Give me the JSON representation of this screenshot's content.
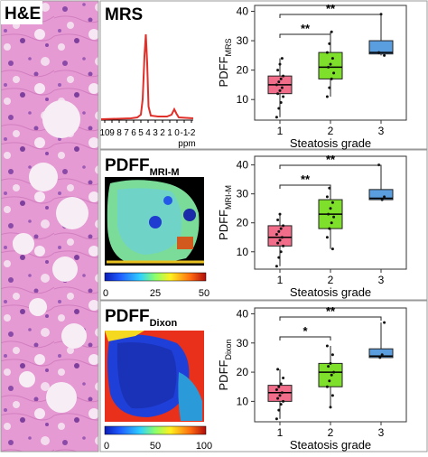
{
  "he_panel": {
    "label": "H&E"
  },
  "panels": [
    {
      "id": "mrs",
      "title_main": "MRS",
      "title_sub": "",
      "spectrum_ticks": [
        "10",
        "9",
        "8",
        "7",
        "6",
        "5",
        "4",
        "3",
        "2",
        "1",
        "0",
        "-1",
        "-2"
      ],
      "spectrum_unit": "ppm"
    },
    {
      "id": "mri-m",
      "title_main": "PDFF",
      "title_sub": "MRI-M",
      "colorbar_ticks": [
        "0",
        "25",
        "50"
      ]
    },
    {
      "id": "dixon",
      "title_main": "PDFF",
      "title_sub": "Dixon",
      "colorbar_ticks": [
        "0",
        "50",
        "100"
      ]
    }
  ],
  "chart_data": [
    {
      "type": "box",
      "ylabel_main": "PDFF",
      "ylabel_sub": "MRS",
      "xlabel": "Steatosis grade",
      "categories": [
        "1",
        "2",
        "3"
      ],
      "yticks": [
        10,
        20,
        30,
        40
      ],
      "ylim": [
        3,
        42
      ],
      "boxes": [
        {
          "q1": 12,
          "median": 15,
          "q3": 18,
          "min": 4,
          "max": 24,
          "color": "#f26d8a"
        },
        {
          "q1": 17,
          "median": 21,
          "q3": 26,
          "min": 11,
          "max": 33,
          "color": "#7ee02a"
        },
        {
          "q1": 25.5,
          "median": 26,
          "q3": 30,
          "min": 25,
          "max": 39,
          "color": "#5b9ee0"
        }
      ],
      "points": [
        [
          1,
          4
        ],
        [
          1,
          7
        ],
        [
          1,
          9
        ],
        [
          1,
          11
        ],
        [
          1,
          12
        ],
        [
          1,
          13
        ],
        [
          1,
          14
        ],
        [
          1,
          15
        ],
        [
          1,
          16
        ],
        [
          1,
          17
        ],
        [
          1,
          18
        ],
        [
          1,
          20
        ],
        [
          1,
          22
        ],
        [
          1,
          24
        ],
        [
          2,
          11
        ],
        [
          2,
          14
        ],
        [
          2,
          17
        ],
        [
          2,
          19
        ],
        [
          2,
          21
        ],
        [
          2,
          22
        ],
        [
          2,
          24
        ],
        [
          2,
          26
        ],
        [
          2,
          29
        ],
        [
          2,
          33
        ],
        [
          3,
          25
        ],
        [
          3,
          26
        ],
        [
          3,
          39
        ]
      ],
      "brackets": [
        {
          "from": 1,
          "to": 2,
          "label": "**"
        },
        {
          "from": 1,
          "to": 3,
          "label": "**"
        }
      ]
    },
    {
      "type": "box",
      "ylabel_main": "PDFF",
      "ylabel_sub": "MRI-M",
      "xlabel": "Steatosis grade",
      "categories": [
        "1",
        "2",
        "3"
      ],
      "yticks": [
        10,
        20,
        30,
        40
      ],
      "ylim": [
        4,
        43
      ],
      "boxes": [
        {
          "q1": 12,
          "median": 15,
          "q3": 19,
          "min": 5,
          "max": 23,
          "color": "#f26d8a"
        },
        {
          "q1": 18,
          "median": 23,
          "q3": 28,
          "min": 11,
          "max": 32,
          "color": "#7ee02a"
        },
        {
          "q1": 28,
          "median": 28.5,
          "q3": 31.5,
          "min": 28,
          "max": 40,
          "color": "#5b9ee0"
        }
      ],
      "points": [
        [
          1,
          5
        ],
        [
          1,
          8
        ],
        [
          1,
          10
        ],
        [
          1,
          12
        ],
        [
          1,
          13
        ],
        [
          1,
          14
        ],
        [
          1,
          15
        ],
        [
          1,
          16
        ],
        [
          1,
          17
        ],
        [
          1,
          18
        ],
        [
          1,
          19
        ],
        [
          1,
          21
        ],
        [
          1,
          23
        ],
        [
          2,
          11
        ],
        [
          2,
          15
        ],
        [
          2,
          18
        ],
        [
          2,
          20
        ],
        [
          2,
          22
        ],
        [
          2,
          23
        ],
        [
          2,
          25
        ],
        [
          2,
          27
        ],
        [
          2,
          29
        ],
        [
          2,
          32
        ],
        [
          3,
          28
        ],
        [
          3,
          29
        ],
        [
          3,
          40
        ]
      ],
      "brackets": [
        {
          "from": 1,
          "to": 2,
          "label": "**"
        },
        {
          "from": 1,
          "to": 3,
          "label": "**"
        }
      ]
    },
    {
      "type": "box",
      "ylabel_main": "PDFF",
      "ylabel_sub": "Dixon",
      "xlabel": "Steatosis grade",
      "categories": [
        "1",
        "2",
        "3"
      ],
      "yticks": [
        10,
        20,
        30,
        40
      ],
      "ylim": [
        3,
        42
      ],
      "boxes": [
        {
          "q1": 10,
          "median": 13,
          "q3": 15.5,
          "min": 4,
          "max": 21,
          "color": "#f26d8a"
        },
        {
          "q1": 15,
          "median": 20,
          "q3": 23,
          "min": 8,
          "max": 29,
          "color": "#7ee02a"
        },
        {
          "q1": 25,
          "median": 25.5,
          "q3": 28,
          "min": 25,
          "max": 37,
          "color": "#5b9ee0"
        }
      ],
      "points": [
        [
          1,
          4
        ],
        [
          1,
          7
        ],
        [
          1,
          9
        ],
        [
          1,
          10
        ],
        [
          1,
          11
        ],
        [
          1,
          12
        ],
        [
          1,
          13
        ],
        [
          1,
          14
        ],
        [
          1,
          15
        ],
        [
          1,
          16
        ],
        [
          1,
          18
        ],
        [
          1,
          21
        ],
        [
          2,
          8
        ],
        [
          2,
          12
        ],
        [
          2,
          15
        ],
        [
          2,
          17
        ],
        [
          2,
          19
        ],
        [
          2,
          20
        ],
        [
          2,
          22
        ],
        [
          2,
          23
        ],
        [
          2,
          26
        ],
        [
          2,
          29
        ],
        [
          3,
          25
        ],
        [
          3,
          26
        ],
        [
          3,
          37
        ]
      ],
      "brackets": [
        {
          "from": 1,
          "to": 2,
          "label": "*"
        },
        {
          "from": 1,
          "to": 3,
          "label": "**"
        }
      ]
    }
  ],
  "colors": {
    "border": "#9a9a9a",
    "spectrum": "#e0302a",
    "tissue_background": "#e59ad3"
  }
}
